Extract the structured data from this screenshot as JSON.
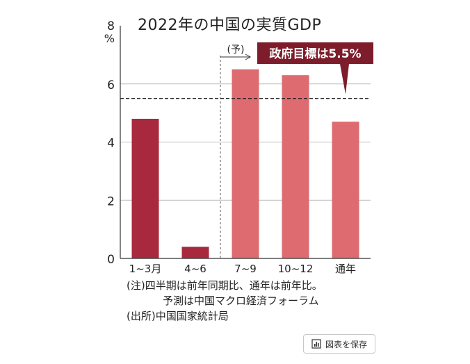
{
  "header": {
    "title": "2022年の中国の実質GDP"
  },
  "chart_data": {
    "type": "bar",
    "categories": [
      "1~3月",
      "4~6",
      "7~9",
      "10~12",
      "通年"
    ],
    "values": [
      4.8,
      0.4,
      6.5,
      6.3,
      4.7
    ],
    "bar_colors": [
      "#a8283e",
      "#a8283e",
      "#dd6b6f",
      "#dd6b6f",
      "#dd6b6f"
    ],
    "title": "2022年の中国の実質GDP",
    "ylabel": "%",
    "ylim": [
      0,
      8
    ],
    "yticks": [
      0,
      2,
      4,
      6,
      8
    ],
    "grid": true,
    "annotations": {
      "forecast_label": "(予)",
      "target_label": "政府目標は5.5%",
      "target_value": 5.5,
      "target_box_color": "#7d1d2b"
    }
  },
  "notes": {
    "line1": "(注)四半期は前年同期比、通年は前年比。",
    "line2": "予測は中国マクロ経済フォーラム",
    "source": "(出所)中国国家統計局"
  },
  "toolbar": {
    "save_label": "図表を保存",
    "save_icon": "bar-chart-icon"
  }
}
